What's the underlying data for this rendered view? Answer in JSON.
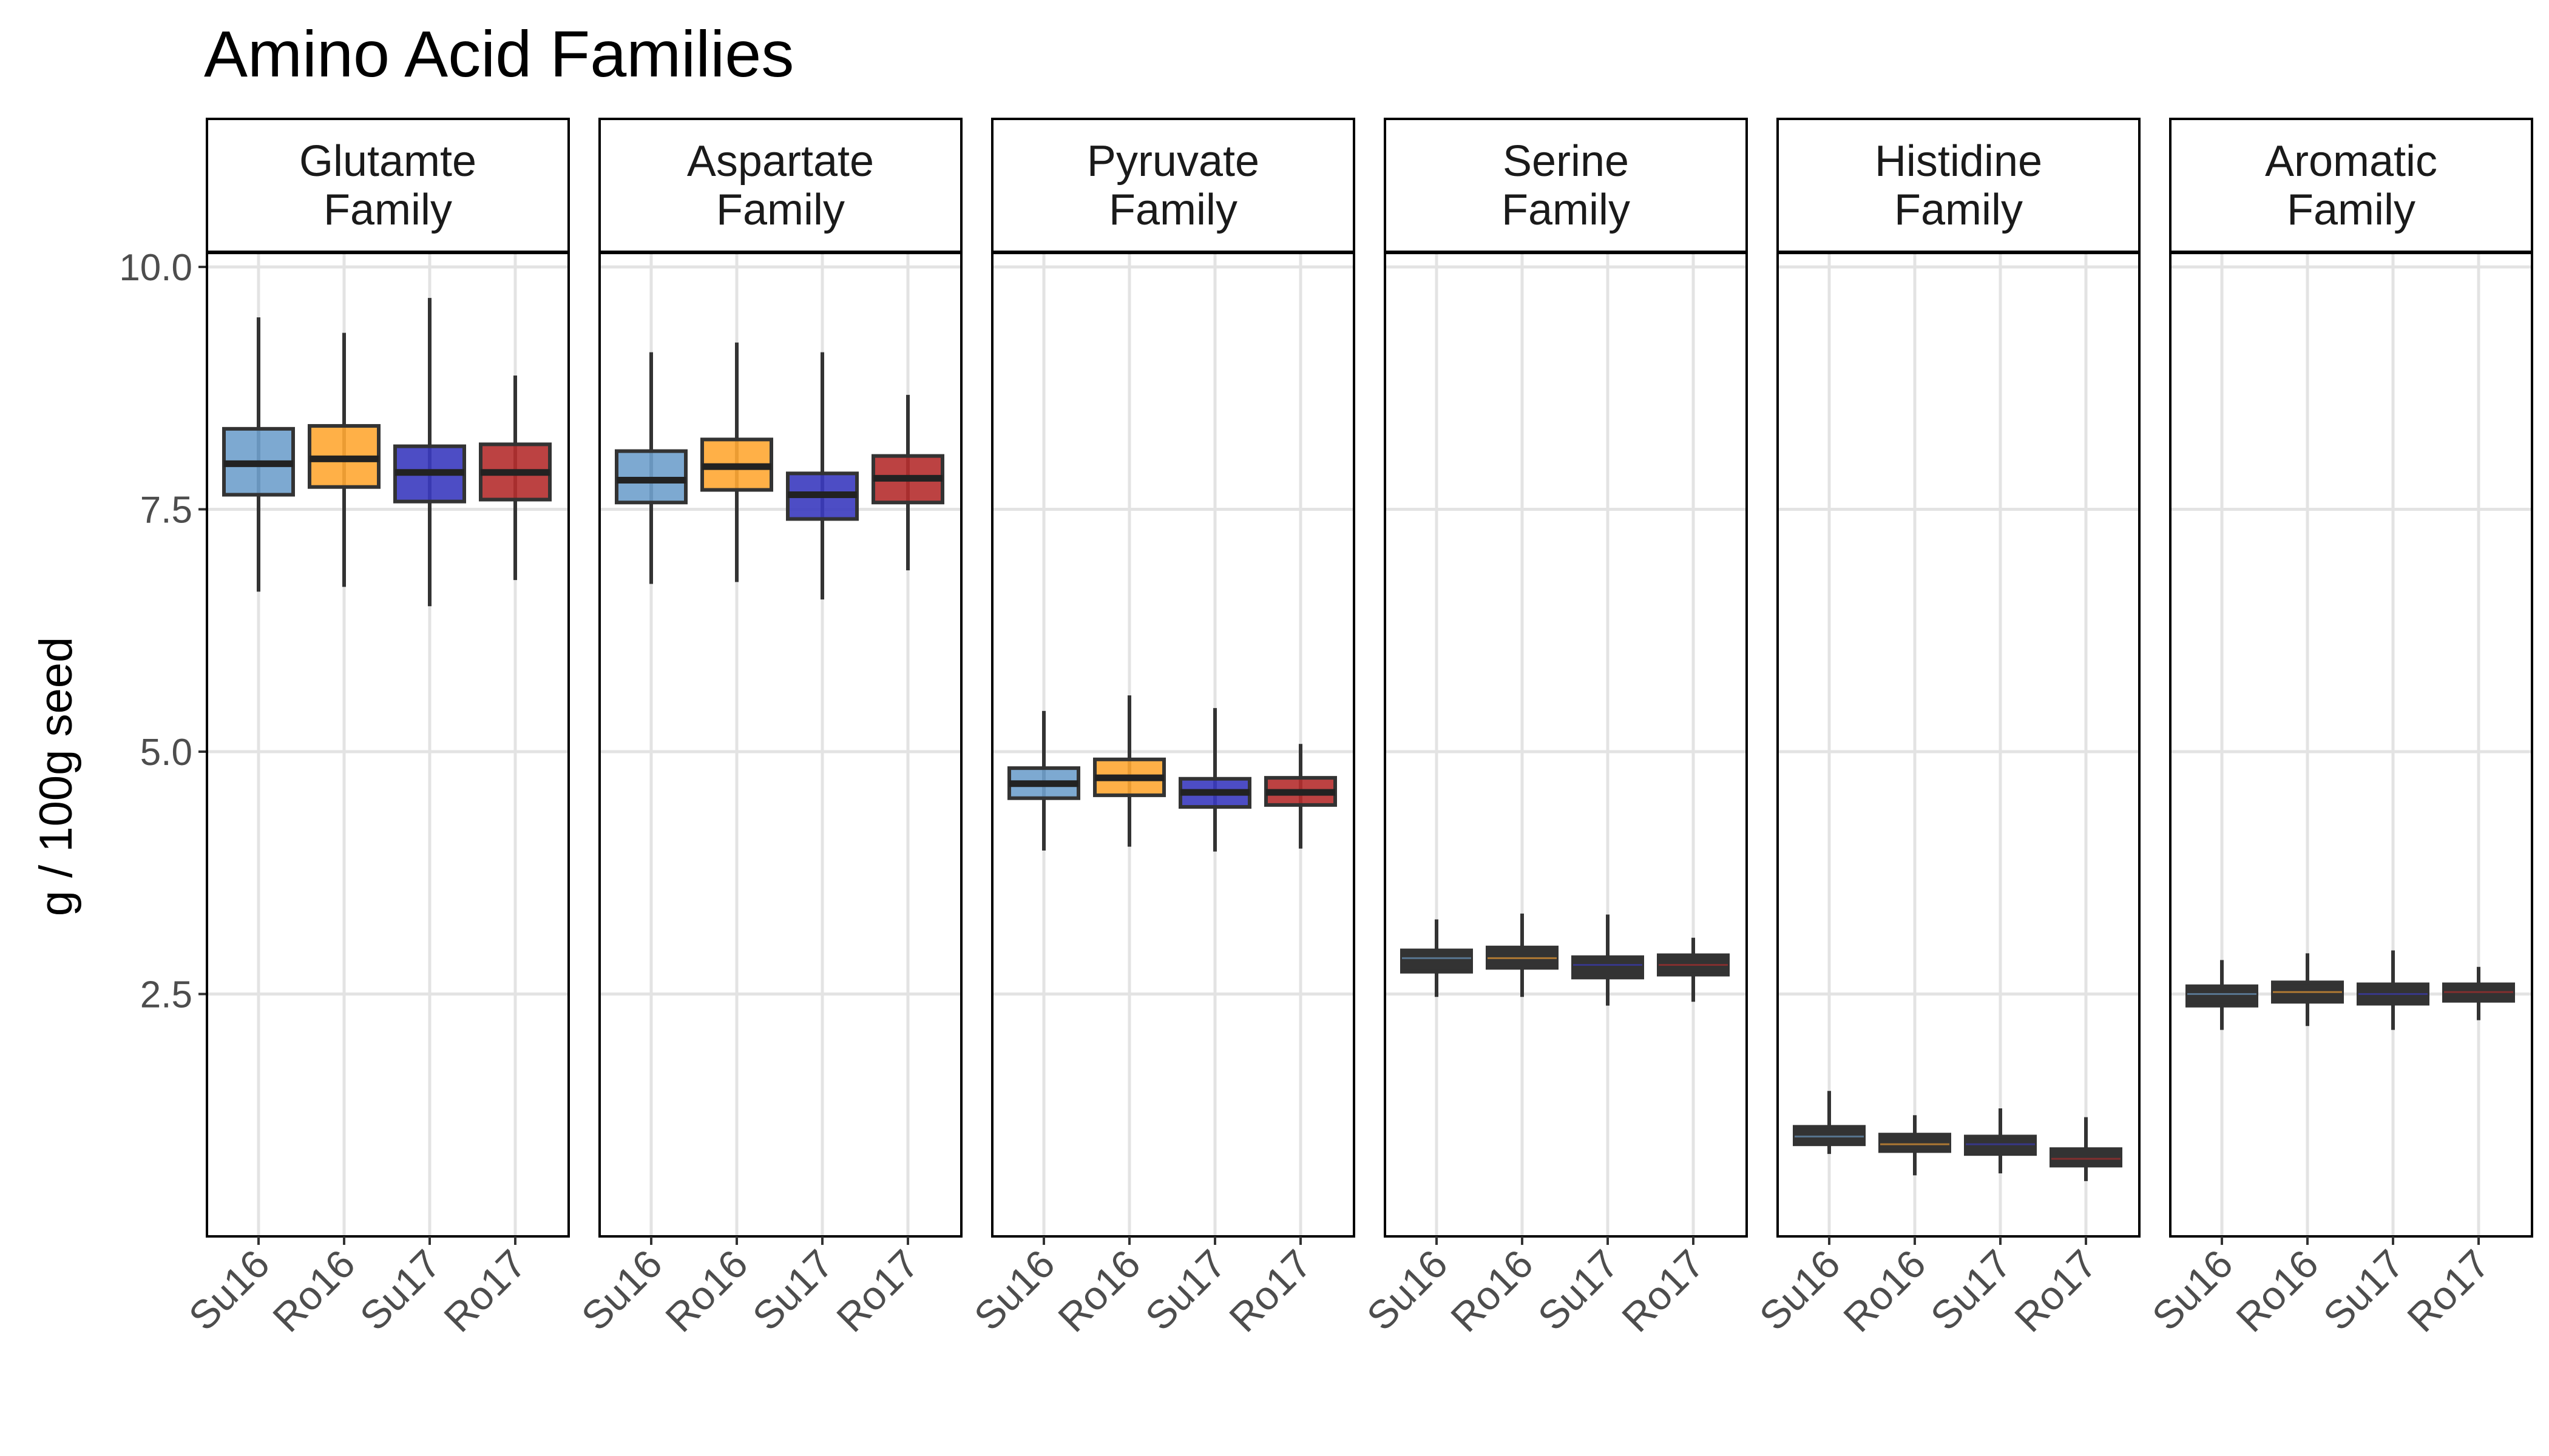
{
  "chart_data": {
    "type": "boxplot",
    "title": "Amino Acid Families",
    "ylabel": "g / 100g seed",
    "xlabel": "",
    "ylim": [
      0.0,
      10.15
    ],
    "yticks": [
      2.5,
      5.0,
      7.5,
      10.0
    ],
    "ytick_labels": [
      "2.5",
      "5.0",
      "7.5",
      "10.0"
    ],
    "grid": true,
    "categories": [
      "Su16",
      "Ro16",
      "Su17",
      "Ro17"
    ],
    "category_colors": [
      "#6fa0cc",
      "#ffa733",
      "#3a3abf",
      "#b52d2d"
    ],
    "facets": [
      {
        "label_line1": "Glutamte",
        "label_line2": "Family",
        "boxes": [
          {
            "category": "Su16",
            "whisker_low": 6.65,
            "q1": 7.65,
            "median": 7.97,
            "q3": 8.33,
            "whisker_high": 9.48
          },
          {
            "category": "Ro16",
            "whisker_low": 6.7,
            "q1": 7.73,
            "median": 8.02,
            "q3": 8.36,
            "whisker_high": 9.32
          },
          {
            "category": "Su17",
            "whisker_low": 6.5,
            "q1": 7.58,
            "median": 7.88,
            "q3": 8.15,
            "whisker_high": 9.68
          },
          {
            "category": "Ro17",
            "whisker_low": 6.77,
            "q1": 7.6,
            "median": 7.88,
            "q3": 8.17,
            "whisker_high": 8.88
          }
        ]
      },
      {
        "label_line1": "Aspartate",
        "label_line2": "Family",
        "boxes": [
          {
            "category": "Su16",
            "whisker_low": 6.73,
            "q1": 7.57,
            "median": 7.8,
            "q3": 8.1,
            "whisker_high": 9.12
          },
          {
            "category": "Ro16",
            "whisker_low": 6.75,
            "q1": 7.7,
            "median": 7.94,
            "q3": 8.22,
            "whisker_high": 9.22
          },
          {
            "category": "Su17",
            "whisker_low": 6.57,
            "q1": 7.4,
            "median": 7.65,
            "q3": 7.87,
            "whisker_high": 9.12
          },
          {
            "category": "Ro17",
            "whisker_low": 6.87,
            "q1": 7.57,
            "median": 7.82,
            "q3": 8.05,
            "whisker_high": 8.68
          }
        ]
      },
      {
        "label_line1": "Pyruvate",
        "label_line2": "Family",
        "boxes": [
          {
            "category": "Su16",
            "whisker_low": 3.98,
            "q1": 4.52,
            "median": 4.67,
            "q3": 4.83,
            "whisker_high": 5.42
          },
          {
            "category": "Ro16",
            "whisker_low": 4.02,
            "q1": 4.55,
            "median": 4.73,
            "q3": 4.92,
            "whisker_high": 5.58
          },
          {
            "category": "Su17",
            "whisker_low": 3.97,
            "q1": 4.43,
            "median": 4.58,
            "q3": 4.72,
            "whisker_high": 5.45
          },
          {
            "category": "Ro17",
            "whisker_low": 4.0,
            "q1": 4.45,
            "median": 4.58,
            "q3": 4.73,
            "whisker_high": 5.08
          }
        ]
      },
      {
        "label_line1": "Serine",
        "label_line2": "Family",
        "boxes": [
          {
            "category": "Su16",
            "whisker_low": 2.47,
            "q1": 2.73,
            "median": 2.87,
            "q3": 2.95,
            "whisker_high": 3.27
          },
          {
            "category": "Ro16",
            "whisker_low": 2.47,
            "q1": 2.77,
            "median": 2.87,
            "q3": 2.98,
            "whisker_high": 3.33
          },
          {
            "category": "Su17",
            "whisker_low": 2.38,
            "q1": 2.67,
            "median": 2.8,
            "q3": 2.88,
            "whisker_high": 3.32
          },
          {
            "category": "Ro17",
            "whisker_low": 2.42,
            "q1": 2.7,
            "median": 2.8,
            "q3": 2.9,
            "whisker_high": 3.08
          }
        ]
      },
      {
        "label_line1": "Histidine",
        "label_line2": "Family",
        "boxes": [
          {
            "category": "Su16",
            "whisker_low": 0.85,
            "q1": 0.95,
            "median": 1.03,
            "q3": 1.13,
            "whisker_high": 1.5
          },
          {
            "category": "Ro16",
            "whisker_low": 0.63,
            "q1": 0.88,
            "median": 0.95,
            "q3": 1.05,
            "whisker_high": 1.25
          },
          {
            "category": "Su17",
            "whisker_low": 0.65,
            "q1": 0.85,
            "median": 0.95,
            "q3": 1.03,
            "whisker_high": 1.32
          },
          {
            "category": "Ro17",
            "whisker_low": 0.57,
            "q1": 0.73,
            "median": 0.8,
            "q3": 0.9,
            "whisker_high": 1.23
          }
        ]
      },
      {
        "label_line1": "Aromatic",
        "label_line2": "Family",
        "boxes": [
          {
            "category": "Su16",
            "whisker_low": 2.13,
            "q1": 2.38,
            "median": 2.5,
            "q3": 2.58,
            "whisker_high": 2.85
          },
          {
            "category": "Ro16",
            "whisker_low": 2.17,
            "q1": 2.42,
            "median": 2.52,
            "q3": 2.62,
            "whisker_high": 2.92
          },
          {
            "category": "Su17",
            "whisker_low": 2.13,
            "q1": 2.4,
            "median": 2.5,
            "q3": 2.6,
            "whisker_high": 2.95
          },
          {
            "category": "Ro17",
            "whisker_low": 2.23,
            "q1": 2.43,
            "median": 2.52,
            "q3": 2.6,
            "whisker_high": 2.78
          }
        ]
      }
    ]
  }
}
